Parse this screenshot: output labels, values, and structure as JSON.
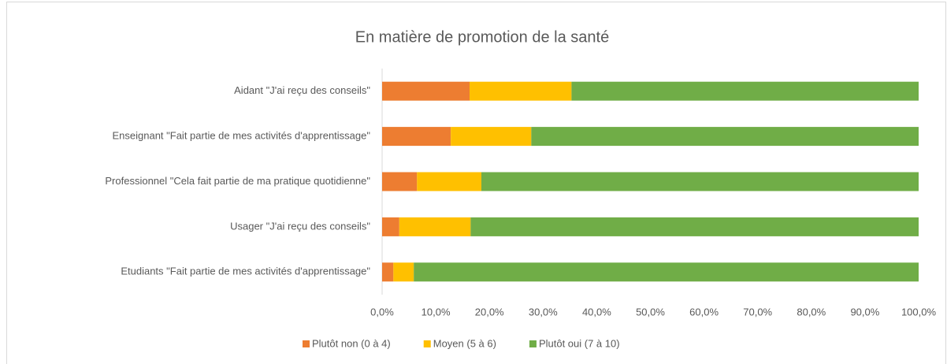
{
  "chart_data": {
    "type": "stacked-bar-horizontal",
    "title": "En matière de promotion de la santé",
    "categories": [
      "Aidant \"J'ai reçu des conseils\"",
      "Enseignant \"Fait partie de mes activités d'apprentissage\"",
      "Professionnel \"Cela fait partie de ma pratique quotidienne\"",
      "Usager \"J'ai reçu des conseils\"",
      "Etudiants \"Fait partie de mes activités d'apprentissage\""
    ],
    "series": [
      {
        "name": "Plutôt non (0 à 4)",
        "color": "#ed7d31",
        "values": [
          16.3,
          12.8,
          6.5,
          3.2,
          2.1
        ]
      },
      {
        "name": "Moyen (5 à 6)",
        "color": "#ffc000",
        "values": [
          19.0,
          15.0,
          12.0,
          13.3,
          3.8
        ]
      },
      {
        "name": "Plutôt oui (7 à 10)",
        "color": "#70ad47",
        "values": [
          64.7,
          72.2,
          81.5,
          83.5,
          94.1
        ]
      }
    ],
    "xlim": [
      0,
      100
    ],
    "xticks": [
      {
        "value": 0,
        "label": "0,0%"
      },
      {
        "value": 10,
        "label": "10,0%"
      },
      {
        "value": 20,
        "label": "20,0%"
      },
      {
        "value": 30,
        "label": "30,0%"
      },
      {
        "value": 40,
        "label": "40,0%"
      },
      {
        "value": 50,
        "label": "50,0%"
      },
      {
        "value": 60,
        "label": "60,0%"
      },
      {
        "value": 70,
        "label": "70,0%"
      },
      {
        "value": 80,
        "label": "80,0%"
      },
      {
        "value": 90,
        "label": "90,0%"
      },
      {
        "value": 100,
        "label": "100,0%"
      }
    ],
    "grid": false,
    "legend": "bottom"
  }
}
